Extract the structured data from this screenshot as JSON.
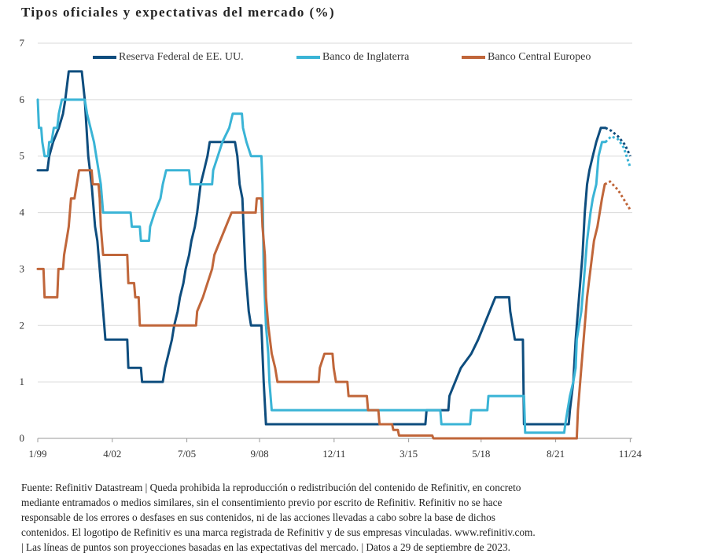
{
  "title": "Tipos oficiales y expectativas del mercado (%)",
  "footer": {
    "lines": [
      "Fuente: Refinitiv Datastream  |  Queda prohibida la reproducción o redistribución del contenido de Refinitiv, en concreto",
      "mediante entramados o medios similares, sin el consentimiento previo por escrito de Refinitiv. Refinitiv no se hace",
      "responsable de los errores o desfases en sus contenidos, ni de las acciones llevadas a cabo sobre la base de dichos",
      "contenidos. El logotipo de Refinitiv es una marca registrada de Refinitiv y de sus empresas vinculadas. www.refinitiv.com.",
      "|  Las líneas de puntos son proyecciones basadas en las expectativas del mercado.  |  Datos a 29 de septiembre de 2023."
    ]
  },
  "chart_data": {
    "type": "line",
    "title": "Tipos oficiales y expectativas del mercado (%)",
    "xlabel": "",
    "ylabel": "",
    "xlim": [
      1999.0,
      2024.92
    ],
    "ylim": [
      0,
      7
    ],
    "y_ticks": [
      0,
      1,
      2,
      3,
      4,
      5,
      6,
      7
    ],
    "x_ticks": [
      {
        "label": "1/99",
        "x": 1999.0
      },
      {
        "label": "4/02",
        "x": 2002.25
      },
      {
        "label": "7/05",
        "x": 2005.5
      },
      {
        "label": "9/08",
        "x": 2008.67
      },
      {
        "label": "12/11",
        "x": 2011.92
      },
      {
        "label": "3/15",
        "x": 2015.17
      },
      {
        "label": "5/18",
        "x": 2018.33
      },
      {
        "label": "8/21",
        "x": 2021.58
      },
      {
        "label": "11/24",
        "x": 2024.83
      }
    ],
    "grid": true,
    "legend_position": "top",
    "series": [
      {
        "name": "Reserva Federal de EE. UU.",
        "color": "#0e4d7e",
        "points": [
          [
            1999.0,
            4.75
          ],
          [
            1999.42,
            4.75
          ],
          [
            1999.5,
            5.0
          ],
          [
            1999.67,
            5.25
          ],
          [
            1999.92,
            5.5
          ],
          [
            2000.1,
            5.75
          ],
          [
            2000.2,
            6.0
          ],
          [
            2000.35,
            6.5
          ],
          [
            2000.92,
            6.5
          ],
          [
            2001.05,
            6.0
          ],
          [
            2001.2,
            5.0
          ],
          [
            2001.35,
            4.5
          ],
          [
            2001.5,
            3.75
          ],
          [
            2001.6,
            3.5
          ],
          [
            2001.7,
            3.0
          ],
          [
            2001.8,
            2.5
          ],
          [
            2001.9,
            2.0
          ],
          [
            2001.95,
            1.75
          ],
          [
            2002.9,
            1.75
          ],
          [
            2002.95,
            1.25
          ],
          [
            2003.5,
            1.25
          ],
          [
            2003.55,
            1.0
          ],
          [
            2004.45,
            1.0
          ],
          [
            2004.55,
            1.25
          ],
          [
            2004.7,
            1.5
          ],
          [
            2004.85,
            1.75
          ],
          [
            2004.95,
            2.0
          ],
          [
            2005.1,
            2.25
          ],
          [
            2005.2,
            2.5
          ],
          [
            2005.35,
            2.75
          ],
          [
            2005.45,
            3.0
          ],
          [
            2005.6,
            3.25
          ],
          [
            2005.7,
            3.5
          ],
          [
            2005.85,
            3.75
          ],
          [
            2005.95,
            4.0
          ],
          [
            2006.1,
            4.5
          ],
          [
            2006.25,
            4.75
          ],
          [
            2006.4,
            5.0
          ],
          [
            2006.5,
            5.25
          ],
          [
            2007.6,
            5.25
          ],
          [
            2007.7,
            5.0
          ],
          [
            2007.8,
            4.5
          ],
          [
            2007.92,
            4.25
          ],
          [
            2008.05,
            3.0
          ],
          [
            2008.2,
            2.25
          ],
          [
            2008.3,
            2.0
          ],
          [
            2008.75,
            2.0
          ],
          [
            2008.8,
            1.5
          ],
          [
            2008.85,
            1.0
          ],
          [
            2008.95,
            0.25
          ],
          [
            2015.9,
            0.25
          ],
          [
            2015.95,
            0.5
          ],
          [
            2016.9,
            0.5
          ],
          [
            2016.95,
            0.75
          ],
          [
            2017.2,
            1.0
          ],
          [
            2017.45,
            1.25
          ],
          [
            2017.9,
            1.5
          ],
          [
            2018.2,
            1.75
          ],
          [
            2018.45,
            2.0
          ],
          [
            2018.7,
            2.25
          ],
          [
            2018.95,
            2.5
          ],
          [
            2019.55,
            2.5
          ],
          [
            2019.6,
            2.25
          ],
          [
            2019.7,
            2.0
          ],
          [
            2019.8,
            1.75
          ],
          [
            2020.15,
            1.75
          ],
          [
            2020.2,
            0.25
          ],
          [
            2022.15,
            0.25
          ],
          [
            2022.2,
            0.5
          ],
          [
            2022.35,
            1.0
          ],
          [
            2022.45,
            1.75
          ],
          [
            2022.6,
            2.5
          ],
          [
            2022.75,
            3.25
          ],
          [
            2022.85,
            4.0
          ],
          [
            2022.95,
            4.5
          ],
          [
            2023.05,
            4.75
          ],
          [
            2023.2,
            5.0
          ],
          [
            2023.35,
            5.25
          ],
          [
            2023.55,
            5.5
          ],
          [
            2023.75,
            5.5
          ]
        ],
        "projection": [
          [
            2023.75,
            5.5
          ],
          [
            2024.0,
            5.45
          ],
          [
            2024.3,
            5.35
          ],
          [
            2024.6,
            5.2
          ],
          [
            2024.83,
            5.0
          ]
        ]
      },
      {
        "name": "Banco de Inglaterra",
        "color": "#3ab4d6",
        "points": [
          [
            1999.0,
            6.0
          ],
          [
            1999.05,
            5.5
          ],
          [
            1999.15,
            5.5
          ],
          [
            1999.2,
            5.25
          ],
          [
            1999.3,
            5.0
          ],
          [
            1999.45,
            5.0
          ],
          [
            1999.5,
            5.25
          ],
          [
            1999.6,
            5.25
          ],
          [
            1999.7,
            5.5
          ],
          [
            1999.85,
            5.5
          ],
          [
            1999.92,
            5.75
          ],
          [
            2000.05,
            6.0
          ],
          [
            2001.05,
            6.0
          ],
          [
            2001.15,
            5.75
          ],
          [
            2001.3,
            5.5
          ],
          [
            2001.45,
            5.25
          ],
          [
            2001.55,
            5.0
          ],
          [
            2001.65,
            4.75
          ],
          [
            2001.75,
            4.5
          ],
          [
            2001.85,
            4.0
          ],
          [
            2003.05,
            4.0
          ],
          [
            2003.1,
            3.75
          ],
          [
            2003.45,
            3.75
          ],
          [
            2003.5,
            3.5
          ],
          [
            2003.85,
            3.5
          ],
          [
            2003.9,
            3.75
          ],
          [
            2004.1,
            4.0
          ],
          [
            2004.35,
            4.25
          ],
          [
            2004.45,
            4.5
          ],
          [
            2004.6,
            4.75
          ],
          [
            2005.6,
            4.75
          ],
          [
            2005.65,
            4.5
          ],
          [
            2006.6,
            4.5
          ],
          [
            2006.65,
            4.75
          ],
          [
            2006.85,
            5.0
          ],
          [
            2007.05,
            5.25
          ],
          [
            2007.35,
            5.5
          ],
          [
            2007.5,
            5.75
          ],
          [
            2007.9,
            5.75
          ],
          [
            2007.95,
            5.5
          ],
          [
            2008.1,
            5.25
          ],
          [
            2008.3,
            5.0
          ],
          [
            2008.75,
            5.0
          ],
          [
            2008.8,
            4.5
          ],
          [
            2008.85,
            3.0
          ],
          [
            2008.95,
            2.0
          ],
          [
            2009.05,
            1.5
          ],
          [
            2009.1,
            1.0
          ],
          [
            2009.2,
            0.5
          ],
          [
            2016.55,
            0.5
          ],
          [
            2016.6,
            0.25
          ],
          [
            2017.85,
            0.25
          ],
          [
            2017.9,
            0.5
          ],
          [
            2018.6,
            0.5
          ],
          [
            2018.65,
            0.75
          ],
          [
            2020.2,
            0.75
          ],
          [
            2020.25,
            0.1
          ],
          [
            2021.95,
            0.1
          ],
          [
            2022.0,
            0.25
          ],
          [
            2022.1,
            0.5
          ],
          [
            2022.2,
            0.75
          ],
          [
            2022.35,
            1.0
          ],
          [
            2022.45,
            1.25
          ],
          [
            2022.5,
            1.75
          ],
          [
            2022.7,
            2.25
          ],
          [
            2022.85,
            3.0
          ],
          [
            2022.95,
            3.5
          ],
          [
            2023.1,
            4.0
          ],
          [
            2023.2,
            4.25
          ],
          [
            2023.35,
            4.5
          ],
          [
            2023.45,
            5.0
          ],
          [
            2023.6,
            5.25
          ],
          [
            2023.75,
            5.25
          ]
        ],
        "projection": [
          [
            2023.75,
            5.25
          ],
          [
            2024.0,
            5.35
          ],
          [
            2024.3,
            5.3
          ],
          [
            2024.55,
            5.15
          ],
          [
            2024.83,
            4.8
          ]
        ]
      },
      {
        "name": "Banco Central Europeo",
        "color": "#c0663a",
        "points": [
          [
            1999.0,
            3.0
          ],
          [
            1999.25,
            3.0
          ],
          [
            1999.3,
            2.5
          ],
          [
            1999.85,
            2.5
          ],
          [
            1999.9,
            3.0
          ],
          [
            2000.1,
            3.0
          ],
          [
            2000.15,
            3.25
          ],
          [
            2000.25,
            3.5
          ],
          [
            2000.35,
            3.75
          ],
          [
            2000.45,
            4.25
          ],
          [
            2000.6,
            4.25
          ],
          [
            2000.7,
            4.5
          ],
          [
            2000.8,
            4.75
          ],
          [
            2001.35,
            4.75
          ],
          [
            2001.4,
            4.5
          ],
          [
            2001.65,
            4.5
          ],
          [
            2001.7,
            4.25
          ],
          [
            2001.75,
            3.75
          ],
          [
            2001.85,
            3.25
          ],
          [
            2002.9,
            3.25
          ],
          [
            2002.95,
            2.75
          ],
          [
            2003.2,
            2.75
          ],
          [
            2003.25,
            2.5
          ],
          [
            2003.4,
            2.5
          ],
          [
            2003.45,
            2.0
          ],
          [
            2005.9,
            2.0
          ],
          [
            2005.95,
            2.25
          ],
          [
            2006.2,
            2.5
          ],
          [
            2006.4,
            2.75
          ],
          [
            2006.6,
            3.0
          ],
          [
            2006.7,
            3.25
          ],
          [
            2006.95,
            3.5
          ],
          [
            2007.2,
            3.75
          ],
          [
            2007.45,
            4.0
          ],
          [
            2008.5,
            4.0
          ],
          [
            2008.55,
            4.25
          ],
          [
            2008.75,
            4.25
          ],
          [
            2008.8,
            3.75
          ],
          [
            2008.9,
            3.25
          ],
          [
            2008.95,
            2.5
          ],
          [
            2009.05,
            2.0
          ],
          [
            2009.2,
            1.5
          ],
          [
            2009.35,
            1.25
          ],
          [
            2009.45,
            1.0
          ],
          [
            2011.25,
            1.0
          ],
          [
            2011.3,
            1.25
          ],
          [
            2011.5,
            1.5
          ],
          [
            2011.85,
            1.5
          ],
          [
            2011.9,
            1.25
          ],
          [
            2012.0,
            1.0
          ],
          [
            2012.5,
            1.0
          ],
          [
            2012.55,
            0.75
          ],
          [
            2013.35,
            0.75
          ],
          [
            2013.4,
            0.5
          ],
          [
            2013.85,
            0.5
          ],
          [
            2013.9,
            0.25
          ],
          [
            2014.45,
            0.25
          ],
          [
            2014.5,
            0.15
          ],
          [
            2014.7,
            0.15
          ],
          [
            2014.75,
            0.05
          ],
          [
            2016.2,
            0.05
          ],
          [
            2016.25,
            0.0
          ],
          [
            2022.5,
            0.0
          ],
          [
            2022.55,
            0.5
          ],
          [
            2022.7,
            1.25
          ],
          [
            2022.85,
            2.0
          ],
          [
            2022.95,
            2.5
          ],
          [
            2023.1,
            3.0
          ],
          [
            2023.25,
            3.5
          ],
          [
            2023.4,
            3.75
          ],
          [
            2023.5,
            4.0
          ],
          [
            2023.6,
            4.25
          ],
          [
            2023.72,
            4.5
          ]
        ],
        "projection": [
          [
            2023.72,
            4.5
          ],
          [
            2023.95,
            4.55
          ],
          [
            2024.3,
            4.4
          ],
          [
            2024.6,
            4.2
          ],
          [
            2024.83,
            4.05
          ]
        ]
      }
    ]
  }
}
